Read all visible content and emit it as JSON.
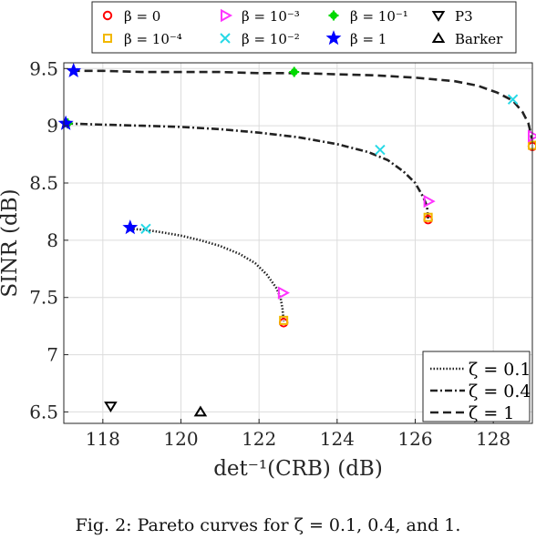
{
  "caption": "Fig. 2: Pareto curves for ζ = 0.1, 0.4, and 1.",
  "chart_data": {
    "type": "line",
    "xlabel": "det⁻¹(CRB) (dB)",
    "ylabel": "SINR (dB)",
    "xlim": [
      117,
      129
    ],
    "ylim": [
      6.4,
      9.55
    ],
    "xticks": [
      118,
      120,
      122,
      124,
      126,
      128
    ],
    "yticks": [
      6.5,
      7,
      7.5,
      8,
      8.5,
      9,
      9.5
    ],
    "xtick_labels": [
      "118",
      "120",
      "122",
      "124",
      "126",
      "128"
    ],
    "ytick_labels": [
      "6.5",
      "7",
      "7.5",
      "8",
      "8.5",
      "9",
      "9.5"
    ],
    "grid": true,
    "top_legend_placement": "top",
    "curve_legend_placement": "bottom-right",
    "series": [
      {
        "name": "ζ = 0.1",
        "style": "dotted",
        "x": [
          118.7,
          119.1,
          119.5,
          120.0,
          120.5,
          121.0,
          121.5,
          121.9,
          122.2,
          122.45,
          122.55,
          122.6,
          122.62,
          122.63
        ],
        "y": [
          8.1,
          8.09,
          8.07,
          8.04,
          8.0,
          7.95,
          7.88,
          7.8,
          7.7,
          7.58,
          7.5,
          7.4,
          7.33,
          7.29
        ]
      },
      {
        "name": "ζ = 0.4",
        "style": "dashdot",
        "x": [
          117.05,
          118.0,
          119.0,
          120.0,
          121.0,
          122.0,
          123.0,
          124.0,
          124.8,
          125.3,
          125.7,
          126.0,
          126.2,
          126.3,
          126.32,
          126.33
        ],
        "y": [
          9.02,
          9.01,
          9.0,
          8.99,
          8.97,
          8.94,
          8.9,
          8.84,
          8.77,
          8.7,
          8.6,
          8.5,
          8.38,
          8.3,
          8.23,
          8.19
        ]
      },
      {
        "name": "ζ = 1",
        "style": "dashed",
        "x": [
          117.2,
          118.0,
          119.0,
          120.0,
          121.0,
          122.0,
          123.0,
          124.0,
          125.0,
          126.0,
          127.0,
          127.6,
          128.1,
          128.5,
          128.75,
          128.9,
          128.97,
          129.0
        ],
        "y": [
          9.48,
          9.48,
          9.47,
          9.47,
          9.47,
          9.46,
          9.46,
          9.45,
          9.44,
          9.42,
          9.39,
          9.35,
          9.29,
          9.22,
          9.12,
          9.02,
          8.92,
          8.83
        ]
      }
    ],
    "markers": [
      {
        "legend": "β = 0",
        "marker": "circle",
        "color": "#ff0000",
        "points": [
          [
            122.63,
            7.28
          ],
          [
            126.33,
            8.18
          ],
          [
            129.0,
            8.82
          ]
        ]
      },
      {
        "legend": "β = 10⁻⁴",
        "marker": "square",
        "color": "#f2b800",
        "points": [
          [
            122.63,
            7.3
          ],
          [
            126.33,
            8.2
          ],
          [
            129.0,
            8.83
          ]
        ]
      },
      {
        "legend": "β = 10⁻³",
        "marker": "triangle-right",
        "color": "#ff33ff",
        "points": [
          [
            122.6,
            7.54
          ],
          [
            126.33,
            8.34
          ],
          [
            129.0,
            8.91
          ]
        ]
      },
      {
        "legend": "β = 10⁻²",
        "marker": "x",
        "color": "#26d9e6",
        "points": [
          [
            119.1,
            8.1
          ],
          [
            125.1,
            8.79
          ],
          [
            128.5,
            9.23
          ]
        ]
      },
      {
        "legend": "β = 10⁻¹",
        "marker": "plus",
        "color": "#00d900",
        "points": [
          [
            117.1,
            9.02
          ],
          [
            122.9,
            9.47
          ]
        ]
      },
      {
        "legend": "β = 1",
        "marker": "star",
        "color": "#0000ff",
        "points": [
          [
            117.05,
            9.02
          ],
          [
            117.25,
            9.48
          ],
          [
            118.7,
            8.11
          ]
        ]
      },
      {
        "legend": "P3",
        "marker": "triangle-down",
        "color": "#000000",
        "points": [
          [
            118.2,
            6.55
          ]
        ]
      },
      {
        "legend": "Barker",
        "marker": "triangle-up",
        "color": "#000000",
        "points": [
          [
            120.5,
            6.5
          ]
        ]
      }
    ]
  }
}
